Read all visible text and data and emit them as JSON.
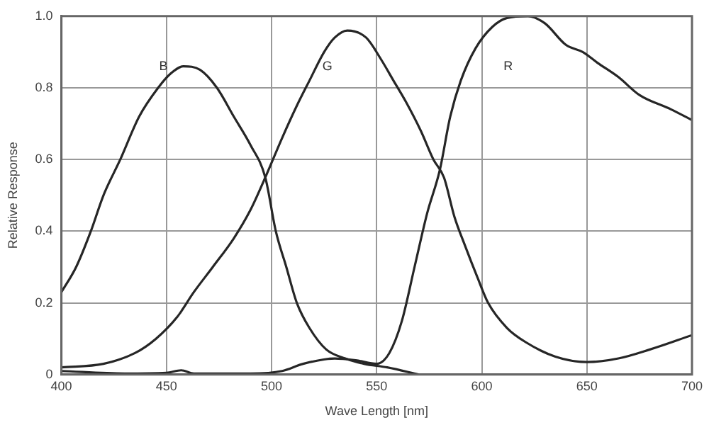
{
  "chart_data": {
    "type": "line",
    "xlabel": "Wave Length [nm]",
    "ylabel": "Relative Response",
    "xlim": [
      400,
      700
    ],
    "xticks": [
      400,
      450,
      500,
      550,
      600,
      650,
      700
    ],
    "ylim": [
      0,
      1
    ],
    "yticks": [
      {
        "value": 0,
        "label": "0"
      },
      0.2,
      0.4,
      0.6,
      0.8,
      {
        "value": 1,
        "label": "1.0"
      }
    ],
    "grid": true,
    "legend": false,
    "marker": "none",
    "line_style": "solid",
    "series": [
      {
        "name": "B",
        "color": "#262626",
        "x": [
          400,
          407,
          414,
          420,
          428,
          437,
          446,
          452,
          458,
          466,
          474,
          482,
          490,
          497,
          502,
          507,
          512,
          518,
          526,
          535,
          544,
          555,
          570
        ],
        "values": [
          0.23,
          0.3,
          0.4,
          0.5,
          0.6,
          0.72,
          0.8,
          0.84,
          0.86,
          0.85,
          0.8,
          0.72,
          0.64,
          0.55,
          0.4,
          0.3,
          0.2,
          0.13,
          0.07,
          0.045,
          0.03,
          0.02,
          0
        ]
      },
      {
        "name": "G",
        "color": "#262626",
        "x": [
          400,
          420,
          435,
          445,
          455,
          463,
          472,
          482,
          490,
          497,
          505,
          512,
          518,
          525,
          530,
          536,
          545,
          552,
          558,
          564,
          571,
          577,
          582,
          587,
          592,
          598,
          603,
          612,
          621,
          635,
          650,
          665,
          680,
          700
        ],
        "values": [
          0.02,
          0.03,
          0.06,
          0.1,
          0.16,
          0.23,
          0.3,
          0.38,
          0.46,
          0.55,
          0.66,
          0.75,
          0.82,
          0.9,
          0.94,
          0.96,
          0.94,
          0.88,
          0.82,
          0.76,
          0.68,
          0.6,
          0.55,
          0.44,
          0.36,
          0.27,
          0.2,
          0.13,
          0.09,
          0.05,
          0.035,
          0.045,
          0.07,
          0.11
        ]
      },
      {
        "name": "R",
        "color": "#262626",
        "x": [
          400,
          430,
          450,
          457,
          463,
          490,
          505,
          515,
          530,
          540,
          550,
          556,
          562,
          568,
          574,
          580,
          585,
          590,
          597,
          605,
          612,
          622,
          630,
          640,
          648,
          655,
          665,
          675,
          690,
          700
        ],
        "values": [
          0.01,
          0.003,
          0.005,
          0.012,
          0.003,
          0.003,
          0.01,
          0.03,
          0.045,
          0.04,
          0.03,
          0.06,
          0.15,
          0.3,
          0.45,
          0.57,
          0.72,
          0.82,
          0.91,
          0.97,
          0.995,
          1,
          0.98,
          0.92,
          0.9,
          0.87,
          0.83,
          0.78,
          0.74,
          0.71
        ]
      }
    ]
  }
}
